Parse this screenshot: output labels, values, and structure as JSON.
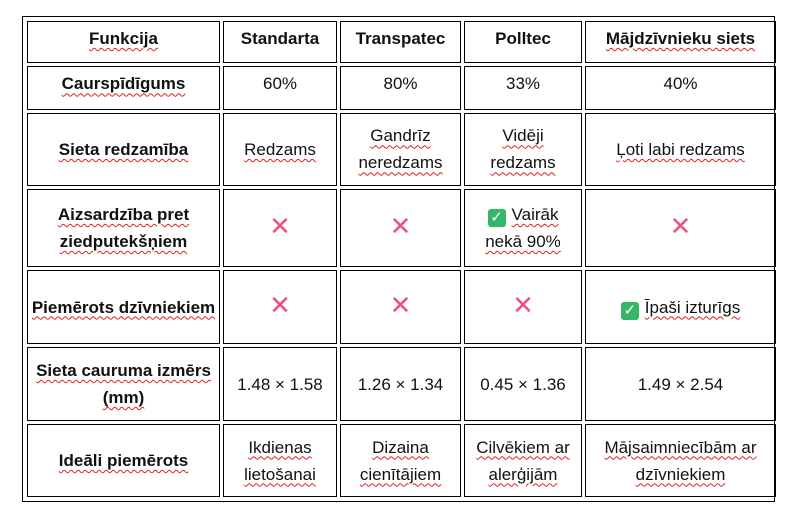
{
  "header": {
    "feature": "Funkcija",
    "col1": "Standarta",
    "col2": "Transpatec",
    "col3": "Polltec",
    "col4": "Mājdzīvnieku siets"
  },
  "rows": [
    {
      "feature": "Caurspīdīgums",
      "c1": "60%",
      "c2": "80%",
      "c3": "33%",
      "c4": "40%"
    },
    {
      "feature": "Sieta redzamība",
      "c1": "Redzams",
      "c2": "Gandrīz neredzams",
      "c3": "Vidēji redzams",
      "c4": "Ļoti labi redzams"
    },
    {
      "feature": "Aizsardzība pret ziedputekšņiem",
      "c3": "Vairāk nekā 90%"
    },
    {
      "feature": "Piemērots dzīvniekiem",
      "c4": "Īpaši izturīgs"
    },
    {
      "feature": "Sieta cauruma izmērs (mm)",
      "c1": "1.48 × 1.58",
      "c2": "1.26 × 1.34",
      "c3": "0.45 × 1.36",
      "c4": "1.49 × 2.54"
    },
    {
      "feature": "Ideāli piemērots",
      "c1": "Ikdienas lietošanai",
      "c2": "Dizaina cienītājiem",
      "c3": "Cilvēkiem ar alerģijām",
      "c4": "Mājsaimniecībām ar dzīvniekiem"
    }
  ],
  "icons": {
    "cross": "✕",
    "check": "✓",
    "cross_color": "#f0507a",
    "check_color": "#34b76a"
  }
}
